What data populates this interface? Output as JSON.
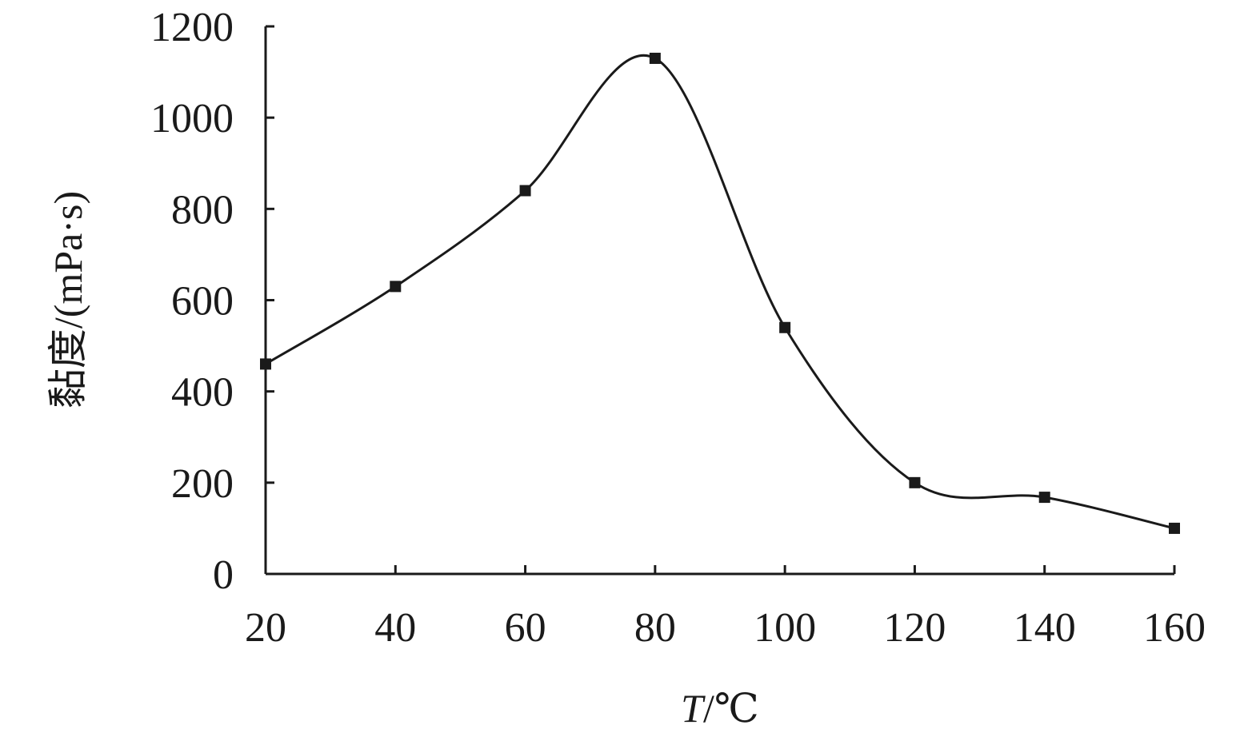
{
  "chart_data": {
    "type": "line",
    "x": [
      20,
      40,
      60,
      80,
      100,
      120,
      140,
      160
    ],
    "series": [
      {
        "values": [
          460,
          630,
          840,
          1130,
          540,
          200,
          168,
          100
        ],
        "marker": "square",
        "color": "#1a1a1a",
        "smooth": true
      }
    ],
    "xlabel_italic": "T",
    "xlabel_rest": "/℃",
    "ylabel": "黏度/(mPa·s)",
    "xlim": [
      20,
      160
    ],
    "ylim": [
      0,
      1200
    ],
    "xticks": [
      "20",
      "40",
      "60",
      "80",
      "100",
      "120",
      "140",
      "160"
    ],
    "yticks": [
      "0",
      "200",
      "400",
      "600",
      "800",
      "1000",
      "1200"
    ],
    "grid": false,
    "legend": "none"
  }
}
